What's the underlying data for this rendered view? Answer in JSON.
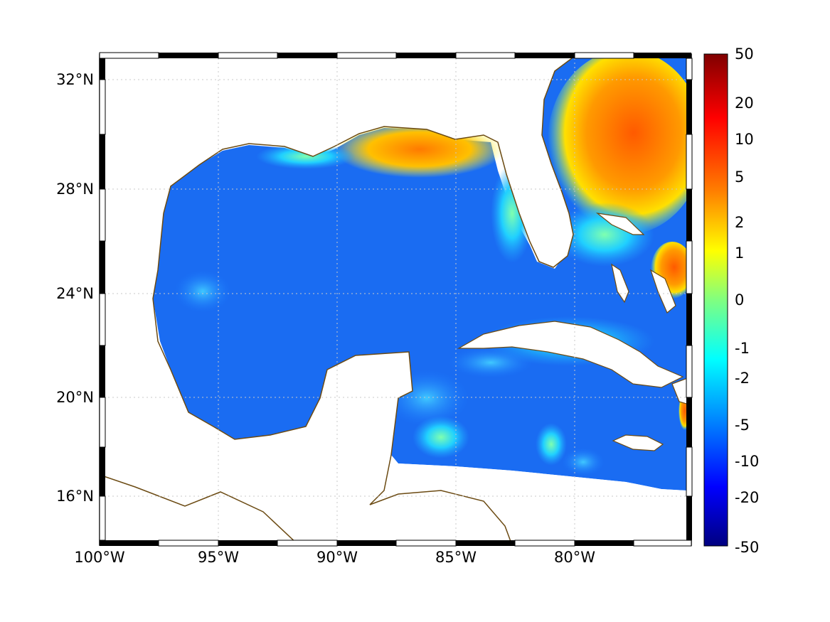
{
  "map": {
    "x_ticks": [
      "100°W",
      "95°W",
      "90°W",
      "85°W",
      "80°W"
    ],
    "y_ticks": [
      "32°N",
      "28°N",
      "24°N",
      "20°N",
      "16°N"
    ],
    "extent": {
      "lon_min": -100,
      "lon_max": -75,
      "lat_min": 14.5,
      "lat_max": 33
    },
    "coastline_color": "#6b4a12",
    "grid": "dotted",
    "frame": "black-white checkered border"
  },
  "colorbar": {
    "tick_labels": [
      "50",
      "20",
      "10",
      "5",
      "2",
      "1",
      "0",
      "-1",
      "-2",
      "-5",
      "-10",
      "-20",
      "-50"
    ],
    "colormap": "jet",
    "colors": [
      "#800000",
      "#ff0000",
      "#ff8000",
      "#ffff00",
      "#80ff80",
      "#00ffff",
      "#0080ff",
      "#0000ff",
      "#000080"
    ]
  }
}
